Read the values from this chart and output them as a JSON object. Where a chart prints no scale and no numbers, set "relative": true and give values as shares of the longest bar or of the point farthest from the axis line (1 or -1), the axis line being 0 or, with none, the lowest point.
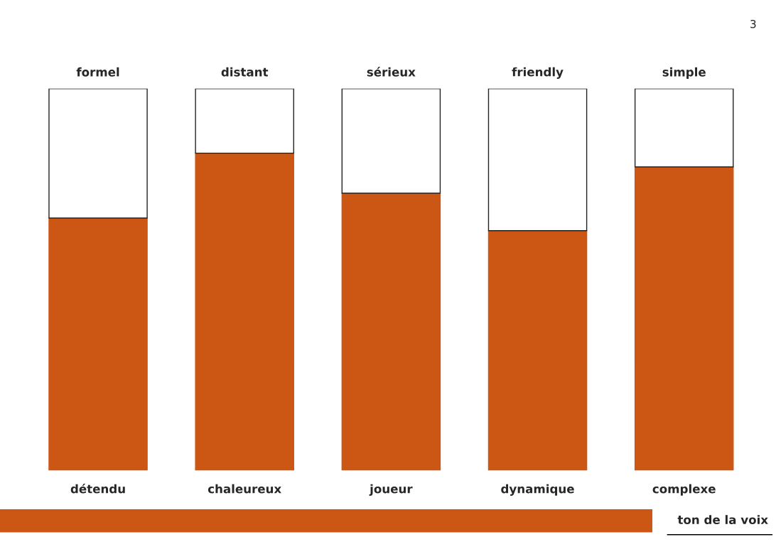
{
  "chart_data": {
    "type": "bar",
    "relative": true,
    "stacked": true,
    "legend": false,
    "grid": false,
    "tick_labels": "x",
    "categories": [
      "détendu",
      "chaleureux",
      "joueur",
      "dynamique",
      "complexe"
    ],
    "series": [
      {
        "color": "#cc5614",
        "values": [
          0.661,
          0.831,
          0.726,
          0.628,
          0.795
        ]
      },
      {
        "color": "#ffffff",
        "values": [
          0.339,
          0.169,
          0.274,
          0.372,
          0.205
        ]
      }
    ],
    "annotations": [
      {
        "text": "formel",
        "x": "détendu",
        "y": 1
      },
      {
        "text": "distant",
        "x": "chaleureux",
        "y": 1
      },
      {
        "text": "sérieux",
        "x": "joueur",
        "y": 1
      },
      {
        "text": "friendly",
        "x": "dynamique",
        "y": 1
      },
      {
        "text": "simple",
        "x": "complexe",
        "y": 1
      },
      "3",
      "ton de la voix"
    ]
  }
}
